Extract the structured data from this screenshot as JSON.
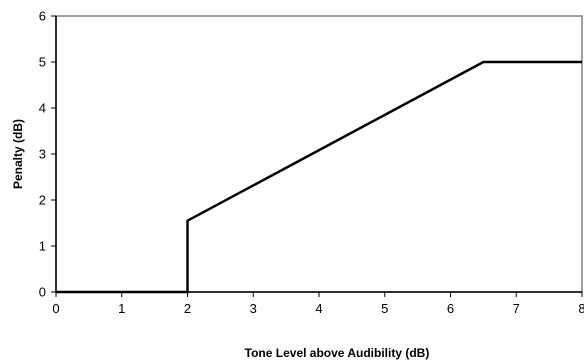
{
  "chart_data": {
    "type": "line",
    "title": "",
    "xlabel": "Tone Level above Audibility (dB)",
    "ylabel": "Penalty (dB)",
    "xlim": [
      0,
      8
    ],
    "ylim": [
      0,
      6
    ],
    "x_ticks": [
      0,
      1,
      2,
      3,
      4,
      5,
      6,
      7,
      8
    ],
    "y_ticks": [
      0,
      1,
      2,
      3,
      4,
      5,
      6
    ],
    "x_tick_labels": [
      "0",
      "1",
      "2",
      "3",
      "4",
      "5",
      "6",
      "7",
      "8"
    ],
    "y_tick_labels": [
      "0",
      "1",
      "2",
      "3",
      "4",
      "5",
      "6"
    ],
    "grid": false,
    "legend": "none",
    "series": [
      {
        "color": "#000000",
        "points": [
          {
            "x": 0,
            "y": 0
          },
          {
            "x": 2,
            "y": 0
          },
          {
            "x": 2,
            "y": 1.55
          },
          {
            "x": 6.5,
            "y": 5
          },
          {
            "x": 8,
            "y": 5
          }
        ]
      }
    ],
    "plot_border_color": "#808080",
    "axis_color": "#000000"
  }
}
